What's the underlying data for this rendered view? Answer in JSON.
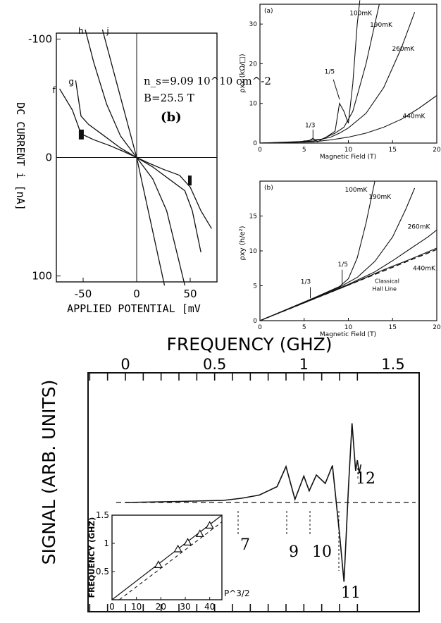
{
  "chart_data": [
    {
      "type": "line",
      "panel_label": "(b)",
      "annotation": [
        "n_s=9.09 10^10 cm^-2",
        "B=25.5 T"
      ],
      "ylabel": "DC CURRENT i [nA]",
      "xlabel": "APPLIED POTENTIAL [mV",
      "xlim": [
        -75,
        75
      ],
      "ylim": [
        105,
        -105
      ],
      "x_ticks": [
        "-50",
        "0",
        "50"
      ],
      "y_ticks": [
        "-100",
        "0",
        "100"
      ],
      "series": [
        {
          "name": "f",
          "x": [
            -72,
            -60,
            -52,
            -40,
            -25,
            -12,
            0,
            12,
            25,
            40,
            50,
            60,
            70
          ],
          "y": [
            -58,
            -40,
            -20,
            -15,
            -10,
            -5,
            0,
            5,
            10,
            15,
            25,
            45,
            60
          ]
        },
        {
          "name": "g",
          "x": [
            -57,
            -52,
            -45,
            -30,
            -15,
            0,
            15,
            30,
            45,
            52,
            60
          ],
          "y": [
            -65,
            -35,
            -28,
            -18,
            -8,
            0,
            8,
            18,
            28,
            45,
            80
          ]
        },
        {
          "name": "h",
          "x": [
            -48,
            -40,
            -28,
            -15,
            0,
            15,
            28,
            45
          ],
          "y": [
            -108,
            -80,
            -45,
            -18,
            0,
            18,
            45,
            108
          ]
        },
        {
          "name": "j",
          "x": [
            -32,
            0,
            26
          ],
          "y": [
            -108,
            0,
            108
          ]
        }
      ]
    },
    {
      "type": "line",
      "panel_label": "(a)",
      "ylabel": "ρxx (kΩ/□)",
      "xlabel": "Magnetic Field (T)",
      "xlim": [
        0,
        20
      ],
      "ylim": [
        0,
        35
      ],
      "x_ticks": [
        "0",
        "5",
        "10",
        "15",
        "20"
      ],
      "y_ticks": [
        "0",
        "10",
        "20",
        "30"
      ],
      "annotations": [
        "1/3",
        "1/5"
      ],
      "series": [
        {
          "name": "100mK",
          "x": [
            0,
            2,
            4,
            5.5,
            6,
            6.5,
            7.5,
            8.5,
            9,
            9.5,
            10,
            10.5,
            11,
            11.3
          ],
          "y": [
            0,
            0,
            0.2,
            0.5,
            1.2,
            0.3,
            1.5,
            3,
            10,
            8,
            5,
            15,
            30,
            36
          ]
        },
        {
          "name": "190mK",
          "x": [
            0,
            4,
            6,
            7,
            8.5,
            9.5,
            10.5,
            11,
            12,
            13,
            13.5
          ],
          "y": [
            0,
            0.2,
            0.8,
            1,
            2.5,
            4,
            8,
            12,
            20,
            30,
            35
          ]
        },
        {
          "name": "260mK",
          "x": [
            0,
            6,
            8,
            9,
            10,
            12,
            14,
            16,
            17.5
          ],
          "y": [
            0,
            0.5,
            1.5,
            2.5,
            3.8,
            7.5,
            14,
            24,
            33
          ]
        },
        {
          "name": "440mK",
          "x": [
            0,
            6,
            8,
            10,
            12,
            14,
            16,
            18,
            20
          ],
          "y": [
            0,
            0.3,
            0.8,
            1.5,
            2.5,
            4,
            6,
            8.8,
            12
          ]
        }
      ]
    },
    {
      "type": "line",
      "panel_label": "(b)",
      "ylabel": "ρxy (h/e²)",
      "xlabel": "Magnetic Field (T)",
      "xlim": [
        0,
        20
      ],
      "ylim": [
        0,
        20
      ],
      "x_ticks": [
        "0",
        "5",
        "10",
        "15",
        "20"
      ],
      "y_ticks": [
        "0",
        "5",
        "10",
        "15"
      ],
      "annotations": [
        "1/3",
        "1/5",
        "Classical Hall Line"
      ],
      "series": [
        {
          "name": "100mK",
          "x": [
            0,
            6,
            9,
            10,
            11,
            12,
            13
          ],
          "y": [
            0,
            3.2,
            4.9,
            6,
            9,
            14,
            20
          ]
        },
        {
          "name": "190mK",
          "x": [
            0,
            9,
            11,
            13,
            15,
            16.5,
            17.5
          ],
          "y": [
            0,
            4.8,
            6.2,
            8.5,
            12,
            16,
            19
          ]
        },
        {
          "name": "260mK",
          "x": [
            0,
            10,
            13,
            15,
            17,
            19,
            20
          ],
          "y": [
            0,
            5.2,
            7,
            8.6,
            10.3,
            12,
            13
          ]
        },
        {
          "name": "440mK",
          "x": [
            0,
            10,
            14,
            17,
            20
          ],
          "y": [
            0,
            5.1,
            7.3,
            8.8,
            10.4
          ]
        },
        {
          "name": "Classical Hall Line",
          "x": [
            0,
            20
          ],
          "y": [
            0,
            10.2
          ]
        }
      ]
    },
    {
      "type": "line",
      "ylabel": "SIGNAL (ARB. UNITS)",
      "xlabel": "FREQUENCY (GHZ)",
      "xlim": [
        0,
        1.5
      ],
      "x_ticks": [
        "0",
        "0.5",
        "1",
        "1.5"
      ],
      "peak_labels": [
        "7",
        "9",
        "10",
        "11",
        "12"
      ],
      "series": [
        {
          "x": [
            0,
            0.3,
            0.55,
            0.65,
            0.75,
            0.85,
            0.9,
            0.95,
            1.0,
            1.03,
            1.07,
            1.12,
            1.16,
            1.2,
            1.225,
            1.25,
            1.27,
            1.29,
            1.3,
            1.31,
            1.32
          ],
          "y": [
            0,
            0.1,
            0.2,
            0.4,
            0.7,
            1.5,
            3.4,
            0.3,
            2.5,
            1.1,
            2.6,
            1.8,
            3.5,
            -3,
            -7.5,
            1.5,
            7.5,
            3,
            4,
            2.8,
            3.6
          ]
        }
      ]
    },
    {
      "type": "scatter",
      "ylabel": "FREQUENCY (GHZ)",
      "xlabel": "P^3/2",
      "xlim": [
        0,
        45
      ],
      "ylim": [
        0,
        1.5
      ],
      "x_ticks": [
        "0",
        "10",
        "20",
        "30",
        "40"
      ],
      "y_ticks": [
        "0.5",
        "1",
        "1.5"
      ],
      "series": [
        {
          "x": [
            19,
            27,
            31,
            36,
            40
          ],
          "y": [
            0.62,
            0.9,
            1.02,
            1.17,
            1.32
          ]
        }
      ]
    }
  ]
}
